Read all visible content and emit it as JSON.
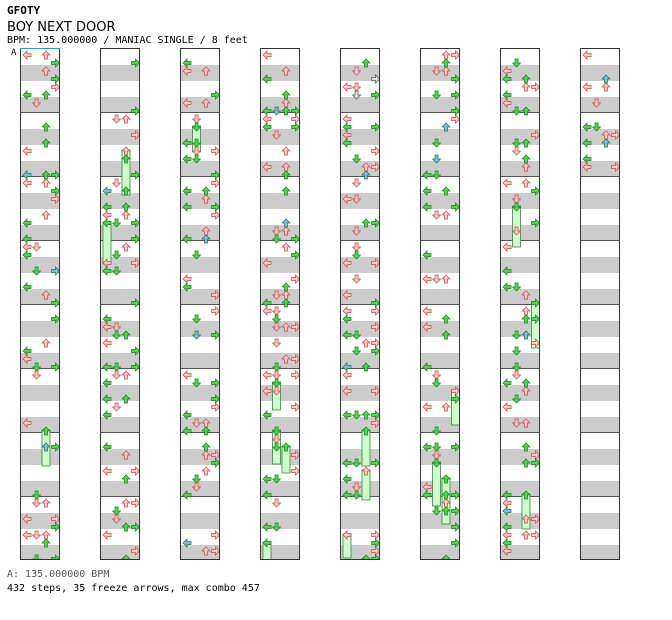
{
  "header": {
    "title": "GFOTY",
    "song": "BOY NEXT DOOR",
    "info": "BPM: 135.000000 / MANIAC SINGLE / 8 feet"
  },
  "marker": {
    "label": "A"
  },
  "footer": {
    "bpm_line": "A: 135.000000 BPM",
    "stats_line": "432 steps, 35 freeze arrows, max combo 457"
  },
  "colors": {
    "band": "#cccccc",
    "tap_red": "#ffc8c8",
    "tap_green": "#44dd44",
    "tap_blue": "#77bbff",
    "tap_pink": "#ffccff",
    "freeze_body": "#ccffcc",
    "freeze_outline": "#338833"
  },
  "chart_data": {
    "type": "table",
    "columns": 8,
    "measures_per_column": 8,
    "beats_per_measure": 4,
    "note_types": [
      "left-arrow",
      "down-arrow",
      "up-arrow",
      "right-arrow",
      "freeze-arrow"
    ],
    "totals": {
      "steps": 432,
      "freeze_arrows": 35,
      "max_combo": 457
    }
  }
}
